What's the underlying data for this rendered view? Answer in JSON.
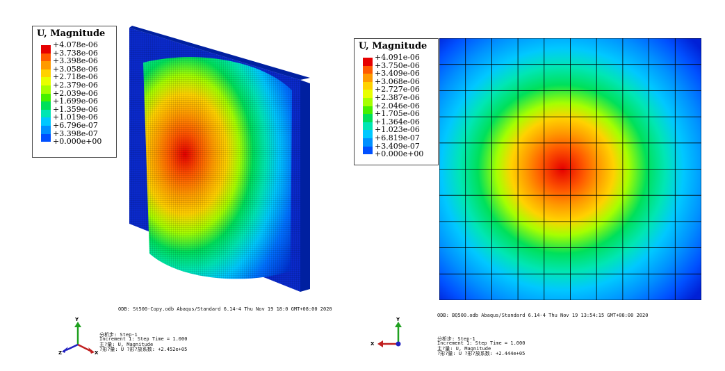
{
  "left_view": {
    "legend": {
      "title": "U, Magnitude",
      "labels": [
        "+4.078e-06",
        "+3.738e-06",
        "+3.398e-06",
        "+3.058e-06",
        "+2.718e-06",
        "+2.379e-06",
        "+2.039e-06",
        "+1.699e-06",
        "+1.359e-06",
        "+1.019e-06",
        "+6.796e-07",
        "+3.398e-07",
        "+0.000e+00"
      ],
      "colors": [
        "#e60000",
        "#ff5a00",
        "#ff9a00",
        "#ffd200",
        "#e8ff00",
        "#a6ff00",
        "#46f000",
        "#00e05a",
        "#00e6b4",
        "#00c8ff",
        "#0090ff",
        "#0050ff",
        "#0000d6"
      ]
    },
    "odb_line": "ODB: St500-Copy.odb    Abaqus/Standard 6.14-4    Thu Nov 19 18:0 GMT+08:00 2020",
    "step_lines": [
      "分析步: Step-1",
      "Increment     1: Step Time =    1.000",
      "主?量: U, Magnitude",
      "?形?量: U   ?形?放系数: +2.452e+05"
    ],
    "triad": {
      "y": "Y",
      "z": "Z",
      "x": "X"
    }
  },
  "right_view": {
    "legend": {
      "title": "U, Magnitude",
      "labels": [
        "+4.091e-06",
        "+3.750e-06",
        "+3.409e-06",
        "+3.068e-06",
        "+2.727e-06",
        "+2.387e-06",
        "+2.046e-06",
        "+1.705e-06",
        "+1.364e-06",
        "+1.023e-06",
        "+6.819e-07",
        "+3.409e-07",
        "+0.000e+00"
      ],
      "colors": [
        "#e60000",
        "#ff5a00",
        "#ff9a00",
        "#ffd200",
        "#e8ff00",
        "#a6ff00",
        "#46f000",
        "#00e05a",
        "#00e6b4",
        "#00c8ff",
        "#0090ff",
        "#0050ff",
        "#0000d6"
      ]
    },
    "odb_line": "ODB: BQ500.odb    Abaqus/Standard 6.14-4    Thu Nov 19 13:54:15 GMT+08:00 2020",
    "step_lines": [
      "分析步: Step-1",
      "Increment     1: Step Time =    1.000",
      "主?量: U, Magnitude",
      "?形?量: U   ?形?放系数: +2.444e+05"
    ],
    "triad": {
      "y": "Y",
      "x": "X"
    }
  }
}
